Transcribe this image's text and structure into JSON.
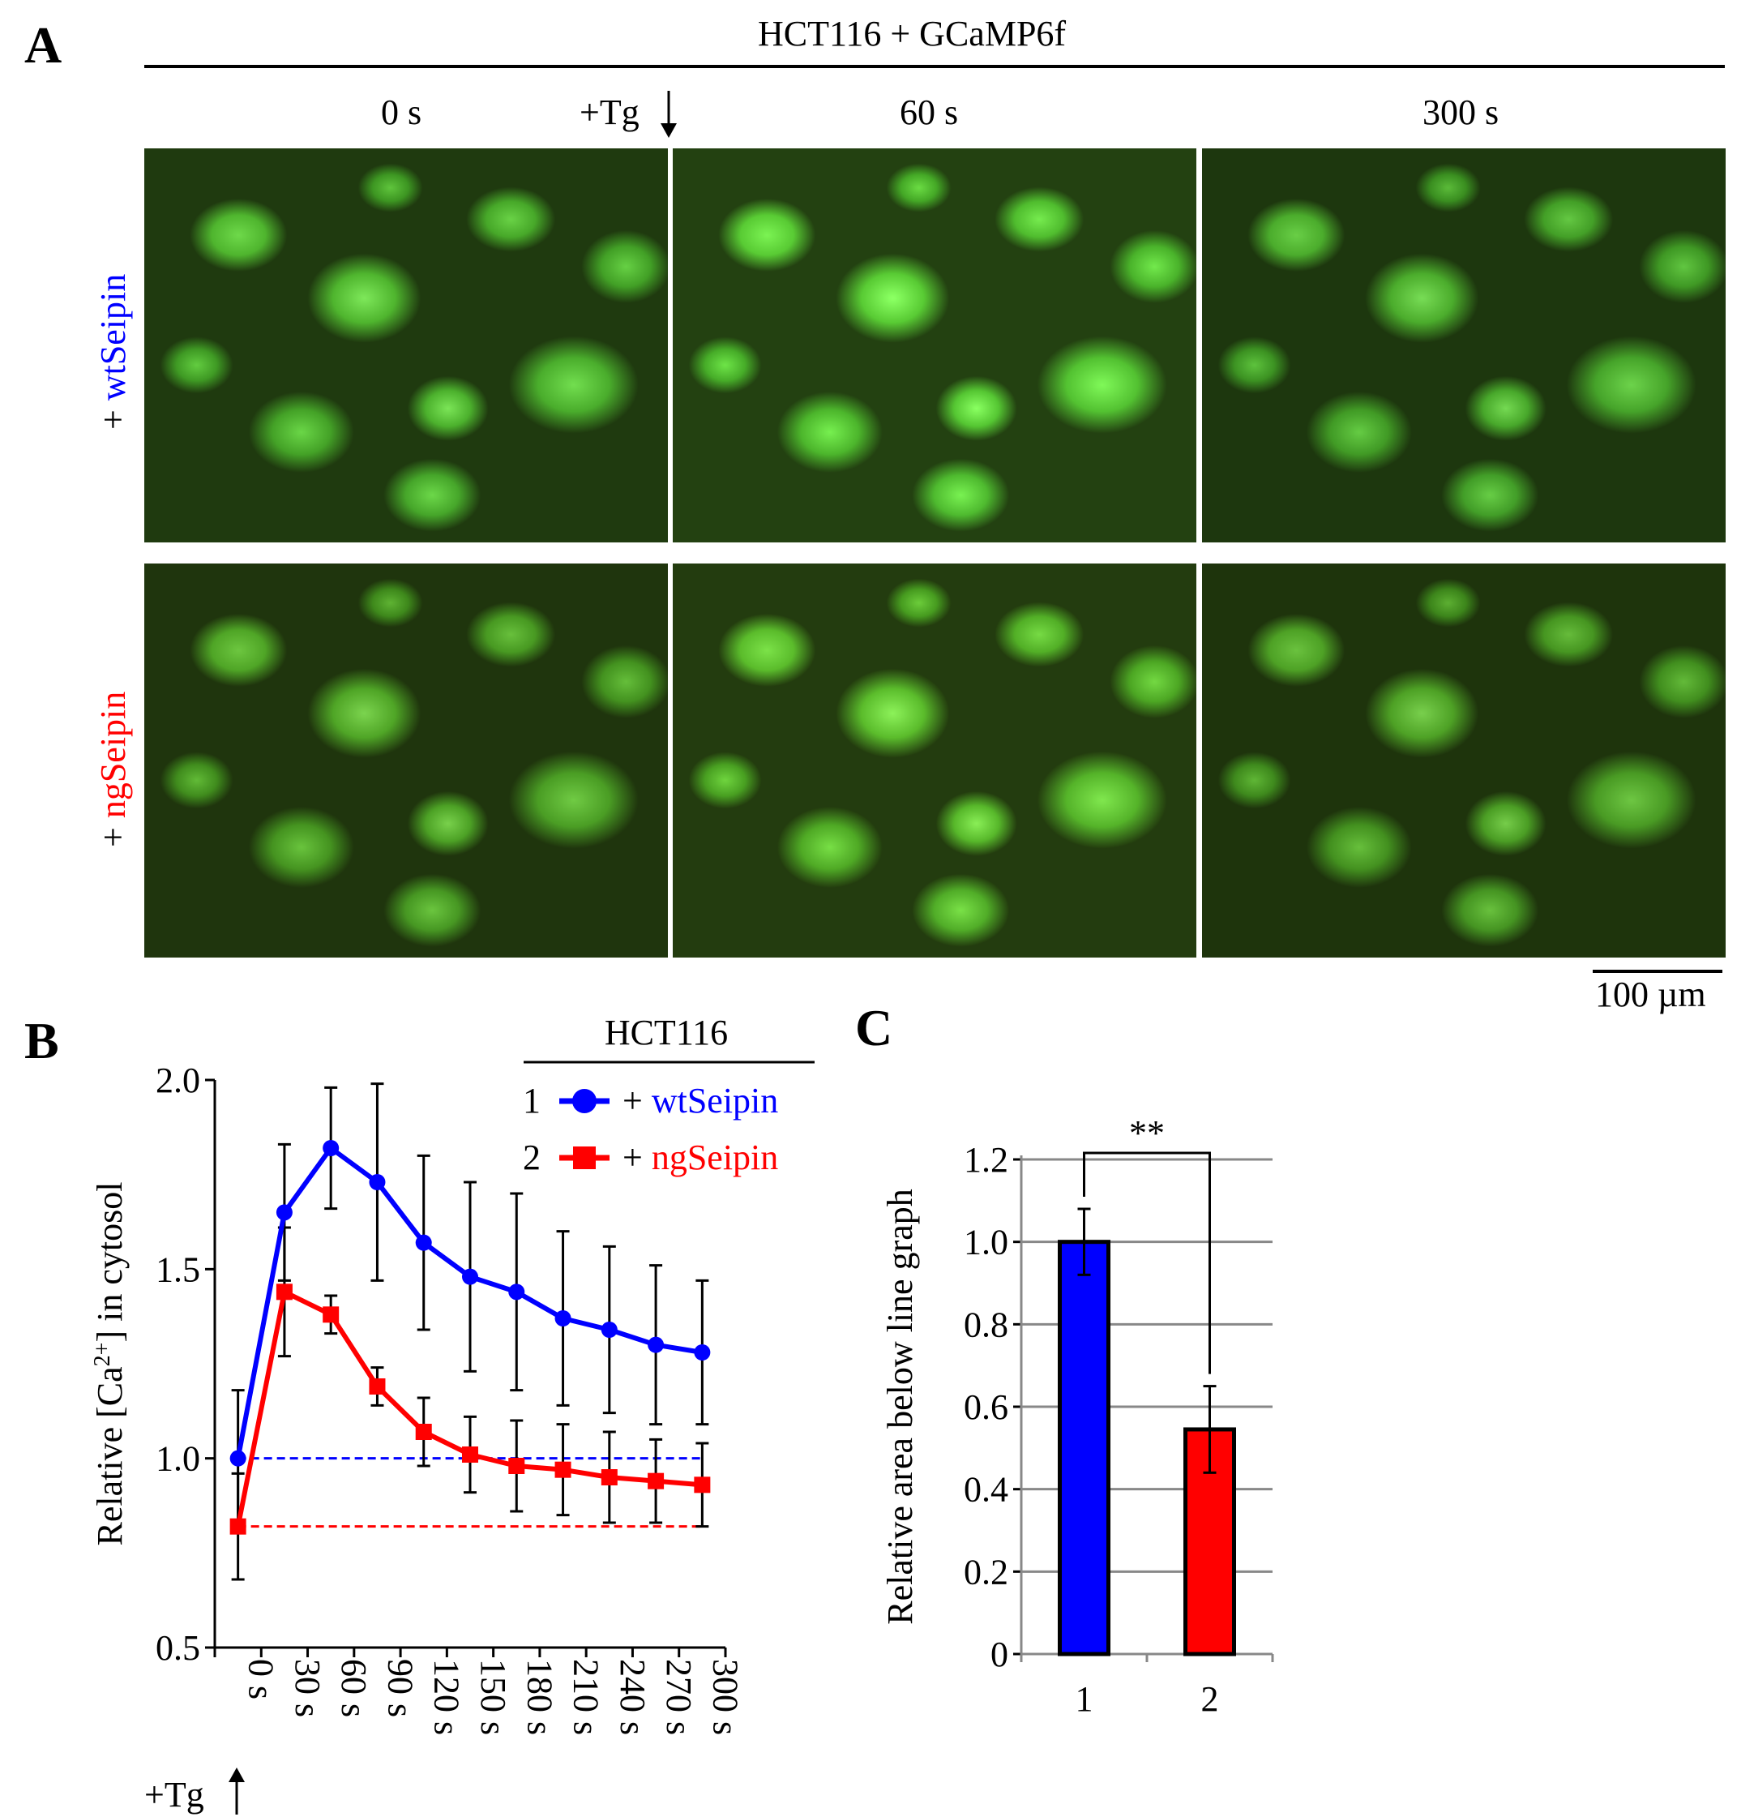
{
  "panel_a": {
    "panel_label": "A",
    "title": "HCT116 + GCaMP6f",
    "time_labels": [
      "0 s",
      "60 s",
      "300 s"
    ],
    "tg_label": "+Tg",
    "row_labels": [
      {
        "prefix": "+ ",
        "name": "wtSeipin",
        "color": "#0000ff"
      },
      {
        "prefix": "+ ",
        "name": "ngSeipin",
        "color": "#ff0000"
      }
    ],
    "scale_bar": "100 µm",
    "image_color": "#4fb52e"
  },
  "panel_b": {
    "panel_label": "B",
    "tg_label": "+Tg",
    "legend_title": "HCT116",
    "legend": [
      {
        "index": "1",
        "prefix": "+ ",
        "name": "wtSeipin",
        "color": "#0000ff"
      },
      {
        "index": "2",
        "prefix": "+ ",
        "name": "ngSeipin",
        "color": "#ff0000"
      }
    ]
  },
  "panel_c": {
    "panel_label": "C",
    "significance": "**"
  },
  "chart_data": [
    {
      "type": "line",
      "ylabel": "Relative [Ca2+] in cytosol",
      "ylim": [
        0.5,
        2.0
      ],
      "yticks": [
        "0.5",
        "1.0",
        "1.5",
        "2.0"
      ],
      "x": [
        "0 s",
        "30 s",
        "60 s",
        "90 s",
        "120 s",
        "150 s",
        "180 s",
        "210 s",
        "240 s",
        "270 s",
        "300 s"
      ],
      "series": [
        {
          "name": "+ wtSeipin",
          "color": "#0000ff",
          "marker": "circle",
          "values": [
            1.0,
            1.65,
            1.82,
            1.73,
            1.57,
            1.48,
            1.44,
            1.37,
            1.34,
            1.3,
            1.28
          ],
          "errors": [
            0.18,
            0.18,
            0.16,
            0.26,
            0.23,
            0.25,
            0.26,
            0.23,
            0.22,
            0.21,
            0.19
          ],
          "baseline": 1.0
        },
        {
          "name": "+ ngSeipin",
          "color": "#ff0000",
          "marker": "square",
          "values": [
            0.82,
            1.44,
            1.38,
            1.19,
            1.07,
            1.01,
            0.98,
            0.97,
            0.95,
            0.94,
            0.93
          ],
          "errors": [
            0.14,
            0.17,
            0.05,
            0.05,
            0.09,
            0.1,
            0.12,
            0.12,
            0.12,
            0.11,
            0.11
          ],
          "baseline": 0.82
        }
      ],
      "grid": false
    },
    {
      "type": "bar",
      "ylabel": "Relative area below line graph",
      "ylim": [
        0,
        1.2
      ],
      "yticks": [
        "0",
        "0.2",
        "0.4",
        "0.6",
        "0.8",
        "1.0",
        "1.2"
      ],
      "categories": [
        "1",
        "2"
      ],
      "values": [
        1.0,
        0.545
      ],
      "errors": [
        0.08,
        0.105
      ],
      "colors": [
        "#0000ff",
        "#ff0000"
      ],
      "grid": true
    }
  ]
}
